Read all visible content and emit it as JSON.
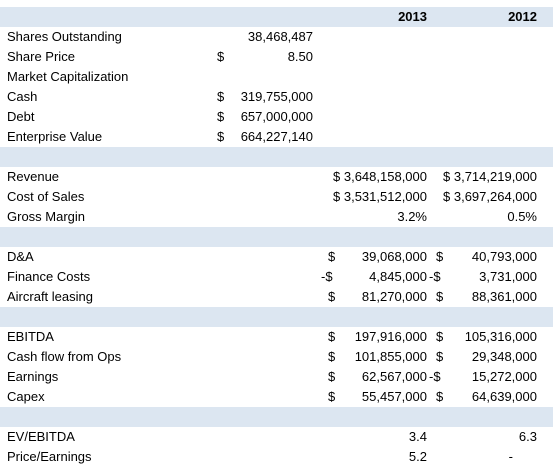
{
  "header": {
    "year_2013": "2013",
    "year_2012": "2012"
  },
  "rows": {
    "shares_outstanding": {
      "label": "Shares Outstanding",
      "value": "38,468,487"
    },
    "share_price": {
      "label": "Share Price",
      "currency": "$",
      "value": "8.50"
    },
    "market_cap": {
      "label": "Market Capitalization"
    },
    "cash": {
      "label": "Cash",
      "currency": "$",
      "value": "319,755,000"
    },
    "debt": {
      "label": "Debt",
      "currency": "$",
      "value": "657,000,000"
    },
    "enterprise_value": {
      "label": "Enterprise Value",
      "currency": "$",
      "value": "664,227,140"
    },
    "revenue": {
      "label": "Revenue",
      "v2013": "$ 3,648,158,000",
      "v2012": "$ 3,714,219,000"
    },
    "cost_of_sales": {
      "label": "Cost of Sales",
      "v2013": "$ 3,531,512,000",
      "v2012": "$ 3,697,264,000"
    },
    "gross_margin": {
      "label": "Gross Margin",
      "v2013": "3.2%",
      "v2012": "0.5%"
    },
    "da": {
      "label": "D&A",
      "c2013": "$",
      "v2013": "39,068,000",
      "c2012": "$",
      "v2012": "40,793,000"
    },
    "finance_costs": {
      "label": "Finance Costs",
      "c2013": "-$",
      "v2013": "4,845,000",
      "c2012": "-$",
      "v2012": "3,731,000"
    },
    "aircraft_leasing": {
      "label": "Aircraft leasing",
      "c2013": "$",
      "v2013": "81,270,000",
      "c2012": "$",
      "v2012": "88,361,000"
    },
    "ebitda": {
      "label": "EBITDA",
      "c2013": "$",
      "v2013": "197,916,000",
      "c2012": "$",
      "v2012": "105,316,000"
    },
    "cash_flow_ops": {
      "label": "Cash flow from Ops",
      "c2013": "$",
      "v2013": "101,855,000",
      "c2012": "$",
      "v2012": "29,348,000"
    },
    "earnings": {
      "label": "Earnings",
      "c2013": "$",
      "v2013": "62,567,000",
      "c2012": "-$",
      "v2012": "15,272,000"
    },
    "capex": {
      "label": "Capex",
      "c2013": "$",
      "v2013": "55,457,000",
      "c2012": "$",
      "v2012": "64,639,000"
    },
    "ev_ebitda": {
      "label": "EV/EBITDA",
      "v2013": "3.4",
      "v2012": "6.3"
    },
    "price_earnings": {
      "label": "Price/Earnings",
      "v2013": "5.2",
      "v2012": "-"
    }
  }
}
